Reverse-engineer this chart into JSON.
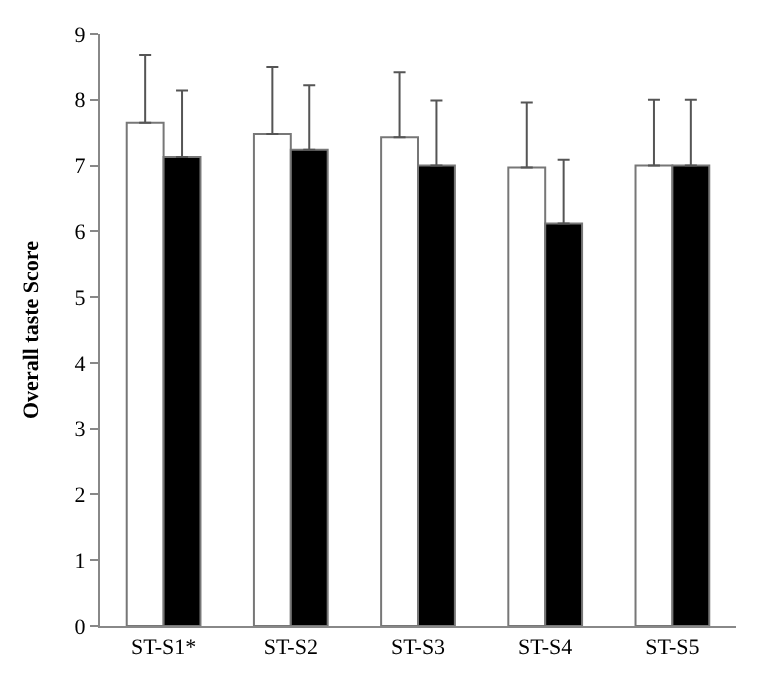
{
  "chart_data": {
    "type": "bar",
    "ylabel": "Overall taste Score",
    "categories": [
      "ST-S1*",
      "ST-S2",
      "ST-S3",
      "ST-S4",
      "ST-S5"
    ],
    "series": [
      {
        "color": "#ffffff",
        "values": [
          7.65,
          7.48,
          7.43,
          6.97,
          7.0
        ],
        "errors": [
          [
            7.65,
            8.68
          ],
          [
            7.48,
            8.5
          ],
          [
            7.43,
            8.42
          ],
          [
            6.97,
            7.96
          ],
          [
            7.0,
            8.0
          ]
        ]
      },
      {
        "color": "#000000",
        "values": [
          7.13,
          7.24,
          7.0,
          6.12,
          7.0
        ],
        "errors": [
          [
            7.13,
            8.14
          ],
          [
            7.24,
            8.22
          ],
          [
            7.0,
            7.99
          ],
          [
            6.12,
            7.09
          ],
          [
            7.0,
            8.0
          ]
        ]
      }
    ],
    "ylim": [
      0,
      9
    ],
    "yticks": [
      0,
      1,
      2,
      3,
      4,
      5,
      6,
      7,
      8,
      9
    ]
  }
}
